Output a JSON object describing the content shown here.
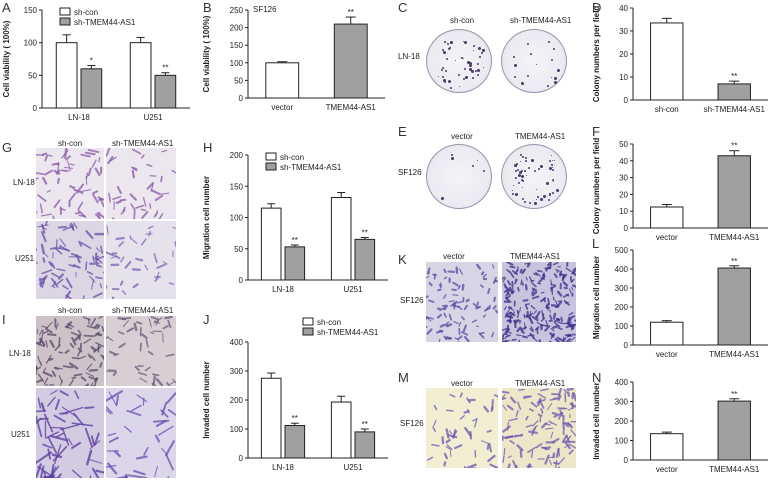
{
  "panels": {
    "A": "A",
    "B": "B",
    "C": "C",
    "D": "D",
    "E": "E",
    "F": "F",
    "G": "G",
    "H": "H",
    "I": "I",
    "J": "J",
    "K": "K",
    "L": "L",
    "M": "M",
    "N": "N"
  },
  "labels": {
    "sf126_tag": "SF126",
    "c_col1": "sh-con",
    "c_col2": "sh-TMEM44-AS1",
    "c_row": "LN-18",
    "e_col1": "vector",
    "e_col2": "TMEM44-AS1",
    "e_row": "SF126",
    "g_col1": "sh-con",
    "g_col2": "sh-TMEM44-AS1",
    "g_row1": "LN-18",
    "g_row2": "U251",
    "i_col1": "sh-con",
    "i_col2": "sh-TMEM44-AS1",
    "i_row1": "LN-18",
    "i_row2": "U251",
    "k_col1": "vector",
    "k_col2": "TMEM44-AS1",
    "k_row": "SF126",
    "m_col1": "vector",
    "m_col2": "TMEM44-AS1",
    "m_row": "SF126"
  },
  "colors": {
    "white_bar": "#ffffff",
    "gray_bar": "#a0a0a0",
    "stain": "#6a4fa0"
  },
  "chart_data": [
    {
      "id": "A",
      "type": "bar",
      "title": "",
      "xlabel": "",
      "ylabel": "Cell viability ( 100%)",
      "ylim": [
        0,
        150
      ],
      "yticks": [
        0,
        50,
        100,
        150
      ],
      "categories": [
        "LN-18",
        "U251"
      ],
      "series": [
        {
          "name": "sh-con",
          "values": [
            100,
            100
          ],
          "errors": [
            12,
            8
          ],
          "color": "#ffffff"
        },
        {
          "name": "sh-TMEM44-AS1",
          "values": [
            60,
            50
          ],
          "errors": [
            5,
            4
          ],
          "color": "#a0a0a0",
          "sig": [
            "*",
            "**"
          ]
        }
      ],
      "legend": "top-left"
    },
    {
      "id": "B",
      "type": "bar",
      "title": "SF126",
      "xlabel": "",
      "ylabel": "Cell viability ( 100%)",
      "ylim": [
        0,
        250
      ],
      "yticks": [
        0,
        50,
        100,
        150,
        200,
        250
      ],
      "categories": [
        "vector",
        "TMEM44-AS1"
      ],
      "values": [
        100,
        210
      ],
      "errors": [
        3,
        20
      ],
      "colors": [
        "#ffffff",
        "#a0a0a0"
      ],
      "sig": [
        "",
        "**"
      ]
    },
    {
      "id": "D",
      "type": "bar",
      "title": "",
      "xlabel": "",
      "ylabel": "Colony numbers per field",
      "ylim": [
        0,
        40
      ],
      "yticks": [
        0,
        10,
        20,
        30,
        40
      ],
      "categories": [
        "sh-con",
        "sh-TMEM44-AS1"
      ],
      "values": [
        33.5,
        7
      ],
      "errors": [
        2,
        1.2
      ],
      "colors": [
        "#ffffff",
        "#a0a0a0"
      ],
      "sig": [
        "",
        "**"
      ]
    },
    {
      "id": "F",
      "type": "bar",
      "title": "",
      "xlabel": "",
      "ylabel": "Colony numbers per field",
      "ylim": [
        0,
        50
      ],
      "yticks": [
        0,
        10,
        20,
        30,
        40,
        50
      ],
      "categories": [
        "vector",
        "TMEM44-AS1"
      ],
      "values": [
        12.5,
        43
      ],
      "errors": [
        1.5,
        3
      ],
      "colors": [
        "#ffffff",
        "#a0a0a0"
      ],
      "sig": [
        "",
        "**"
      ]
    },
    {
      "id": "H",
      "type": "bar",
      "title": "",
      "xlabel": "",
      "ylabel": "Migration cell number",
      "ylim": [
        0,
        200
      ],
      "yticks": [
        0,
        50,
        100,
        150,
        200
      ],
      "categories": [
        "LN-18",
        "U251"
      ],
      "series": [
        {
          "name": "sh-con",
          "values": [
            115,
            132
          ],
          "errors": [
            7,
            8
          ],
          "color": "#ffffff"
        },
        {
          "name": "sh-TMEM44-AS1",
          "values": [
            53,
            65
          ],
          "errors": [
            3,
            3
          ],
          "color": "#a0a0a0",
          "sig": [
            "**",
            "**"
          ]
        }
      ],
      "legend": "top-left"
    },
    {
      "id": "J",
      "type": "bar",
      "title": "",
      "xlabel": "",
      "ylabel": "Invaded cell number",
      "ylim": [
        0,
        400
      ],
      "yticks": [
        0,
        100,
        200,
        300,
        400
      ],
      "categories": [
        "LN-18",
        "U251"
      ],
      "series": [
        {
          "name": "sh-con",
          "values": [
            275,
            193
          ],
          "errors": [
            18,
            20
          ],
          "color": "#ffffff"
        },
        {
          "name": "sh-TMEM44-AS1",
          "values": [
            112,
            90
          ],
          "errors": [
            8,
            10
          ],
          "color": "#a0a0a0",
          "sig": [
            "**",
            "**"
          ]
        }
      ],
      "legend": "top-right"
    },
    {
      "id": "L",
      "type": "bar",
      "title": "",
      "xlabel": "",
      "ylabel": "Migration cell number",
      "ylim": [
        0,
        500
      ],
      "yticks": [
        0,
        100,
        200,
        300,
        400,
        500
      ],
      "categories": [
        "vector",
        "TMEM44-AS1"
      ],
      "values": [
        120,
        405
      ],
      "errors": [
        8,
        12
      ],
      "colors": [
        "#ffffff",
        "#a0a0a0"
      ],
      "sig": [
        "",
        "**"
      ]
    },
    {
      "id": "N",
      "type": "bar",
      "title": "",
      "xlabel": "",
      "ylabel": "Invaded cell number",
      "ylim": [
        0,
        400
      ],
      "yticks": [
        0,
        100,
        200,
        300,
        400
      ],
      "categories": [
        "vector",
        "TMEM44-AS1"
      ],
      "values": [
        135,
        302
      ],
      "errors": [
        8,
        12
      ],
      "colors": [
        "#ffffff",
        "#a0a0a0"
      ],
      "sig": [
        "",
        "**"
      ]
    }
  ]
}
